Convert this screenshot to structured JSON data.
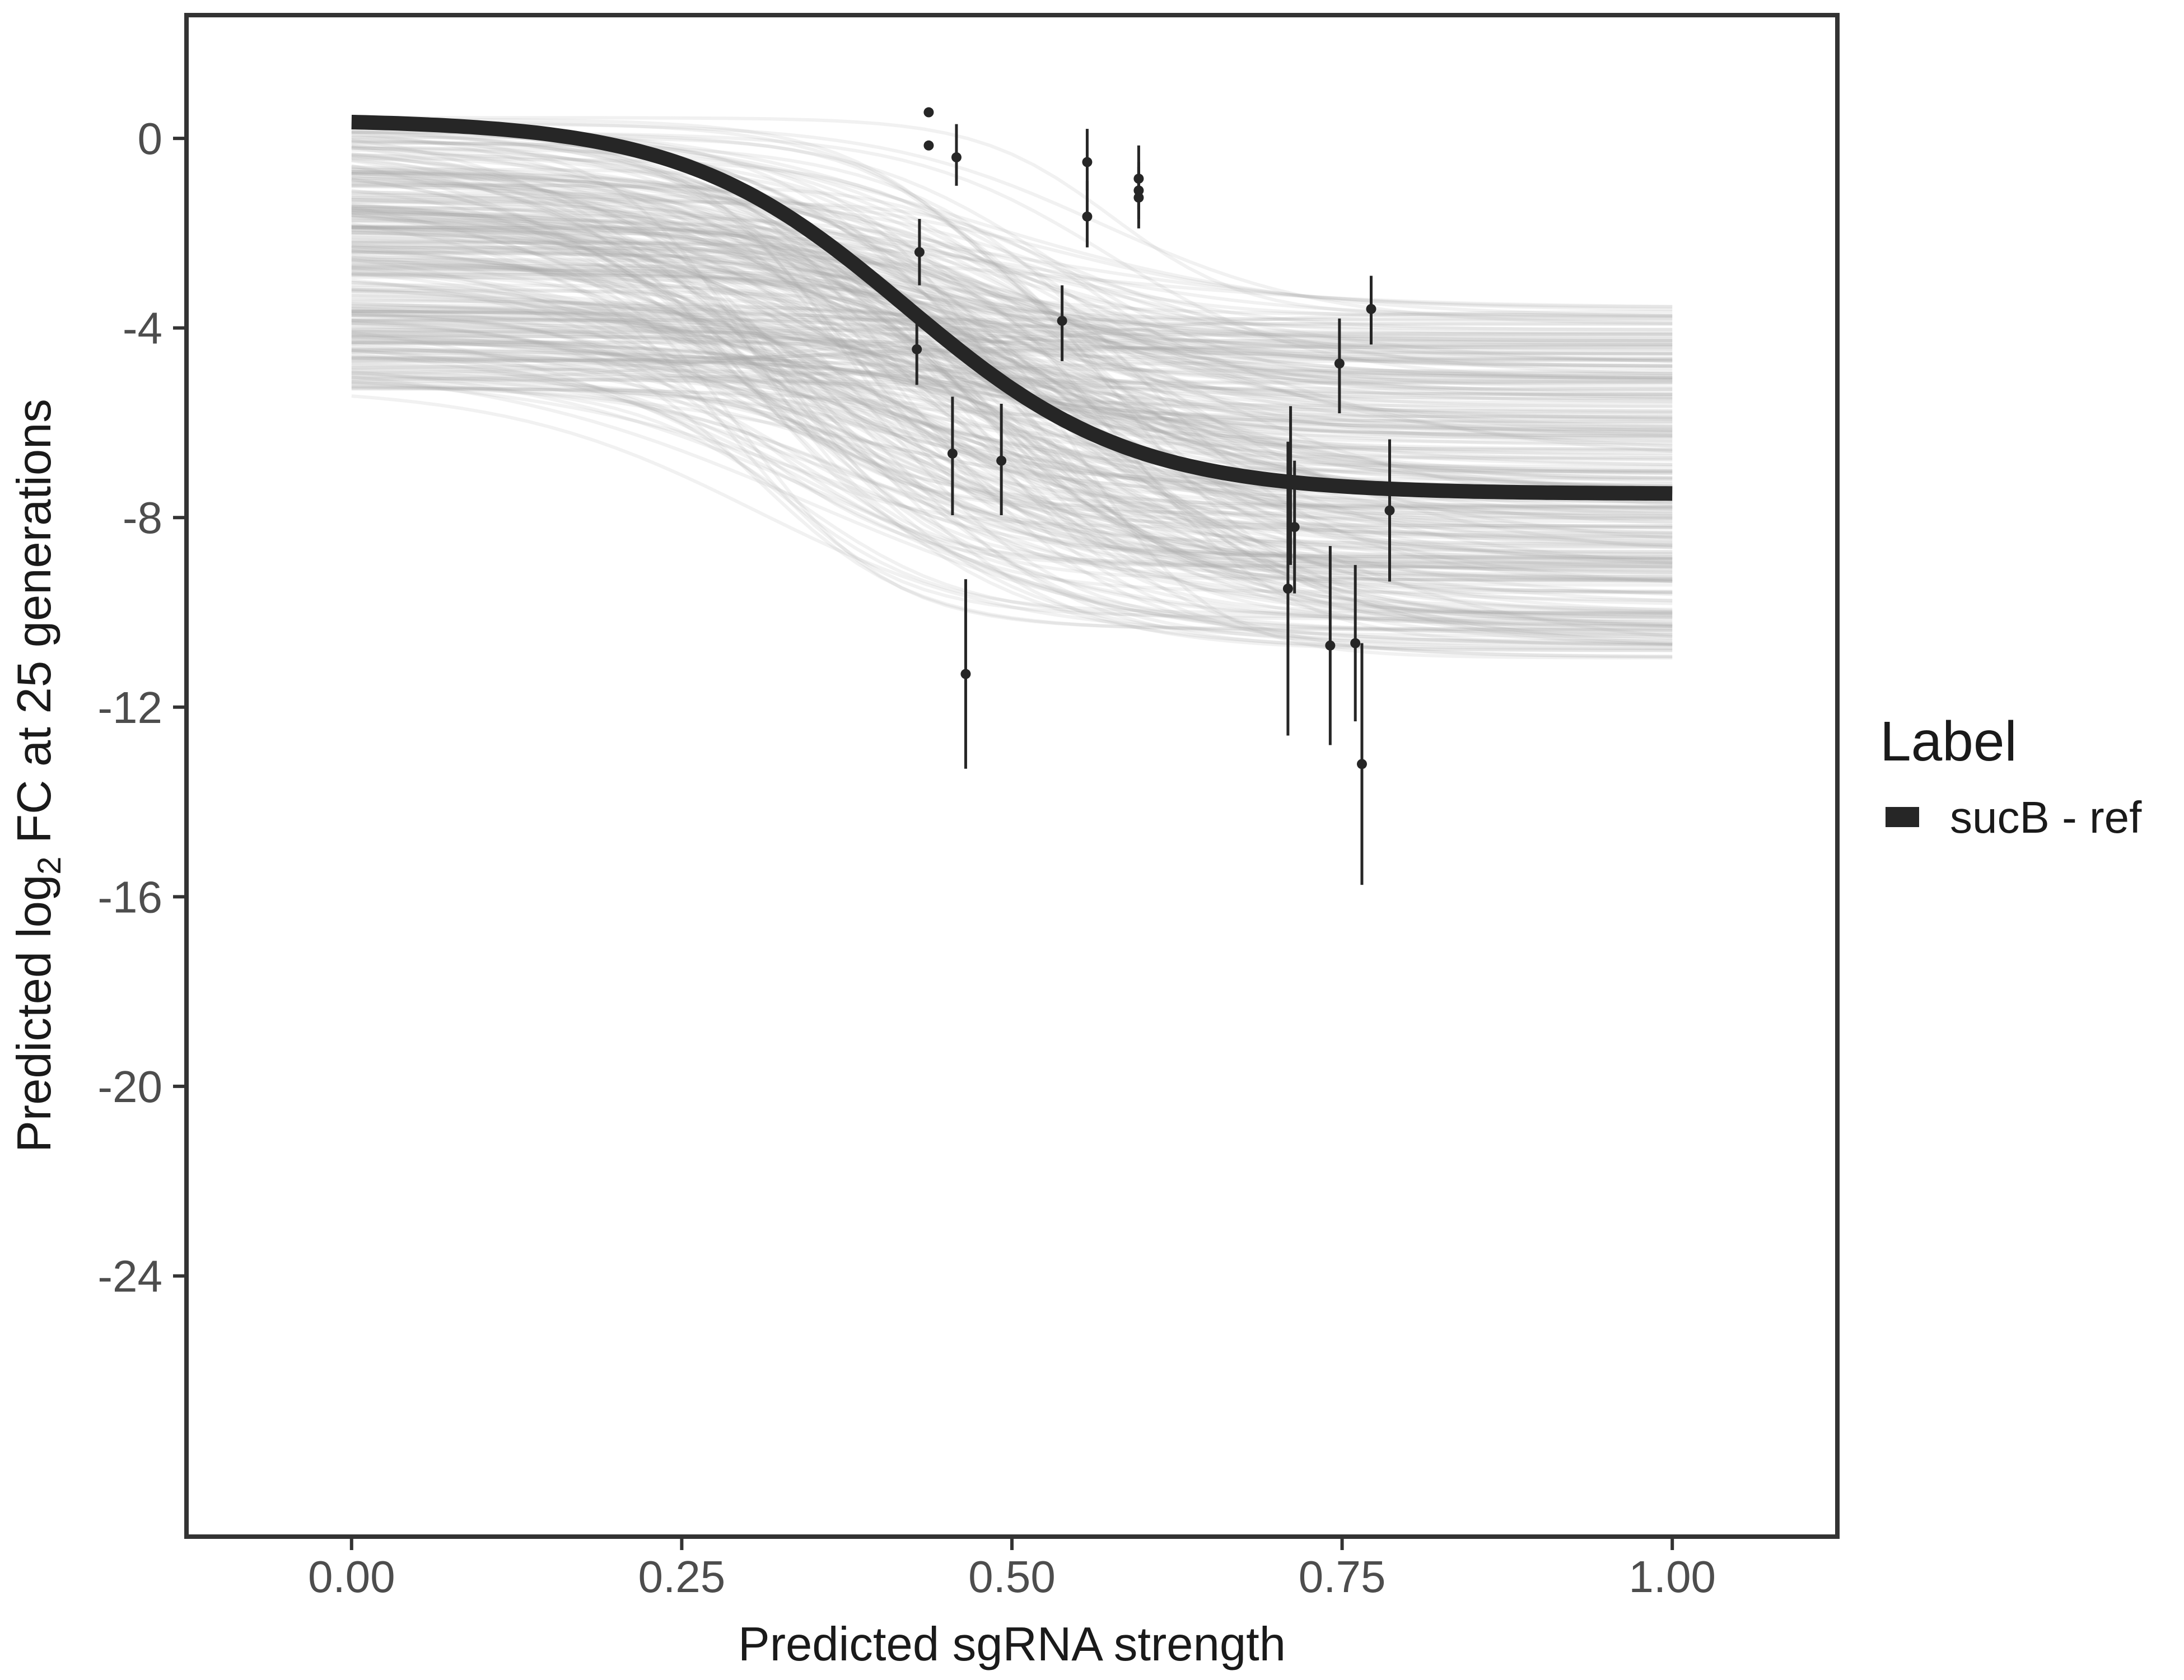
{
  "chart_data": {
    "type": "line",
    "title": "",
    "xlabel": "Predicted sgRNA strength",
    "ylabel": {
      "prefix": "Predicted  log",
      "subscript": "2",
      "suffix": " FC at 25 generations"
    },
    "xlim": [
      -0.125,
      1.125
    ],
    "ylim": [
      -29.5,
      2.6
    ],
    "x_ticks": [
      {
        "value": 0,
        "label": "0.00"
      },
      {
        "value": 0.25,
        "label": "0.25"
      },
      {
        "value": 0.5,
        "label": "0.50"
      },
      {
        "value": 0.75,
        "label": "0.75"
      },
      {
        "value": 1,
        "label": "1.00"
      }
    ],
    "y_ticks": [
      {
        "value": 0,
        "label": "0"
      },
      {
        "value": -4,
        "label": "-4"
      },
      {
        "value": -8,
        "label": "-8"
      },
      {
        "value": -12,
        "label": "-12"
      },
      {
        "value": -16,
        "label": "-16"
      },
      {
        "value": -20,
        "label": "-20"
      },
      {
        "value": -24,
        "label": "-24"
      }
    ],
    "grid": false,
    "legend": {
      "title": "Label",
      "position": "right",
      "entries": [
        {
          "name": "sucB - ref",
          "color": "#262626"
        }
      ]
    },
    "fit_line": {
      "name": "sucB - ref",
      "color": "#262626",
      "model": "logistic",
      "params": {
        "top": 0.4,
        "bottom": -7.5,
        "midpoint": 0.42,
        "scale": 0.085
      },
      "x_range": [
        0,
        1
      ]
    },
    "posterior_draws": {
      "color": "#aaaaaa",
      "count": 300,
      "top_range": [
        -5.3,
        0.5
      ],
      "bottom_range": [
        -11.0,
        -3.5
      ],
      "midpoint_range": [
        0.28,
        0.6
      ],
      "scale_range": [
        0.05,
        0.13
      ]
    },
    "points": [
      {
        "x": 0.437,
        "y": 0.55,
        "lo": 0.55,
        "hi": 0.55
      },
      {
        "x": 0.437,
        "y": -0.15,
        "lo": -0.15,
        "hi": -0.15
      },
      {
        "x": 0.458,
        "y": -0.4,
        "lo": -1.0,
        "hi": 0.3
      },
      {
        "x": 0.43,
        "y": -2.4,
        "lo": -3.1,
        "hi": -1.7
      },
      {
        "x": 0.428,
        "y": -4.45,
        "lo": -5.2,
        "hi": -3.75
      },
      {
        "x": 0.455,
        "y": -6.65,
        "lo": -7.95,
        "hi": -5.45
      },
      {
        "x": 0.465,
        "y": -11.3,
        "lo": -13.3,
        "hi": -9.3
      },
      {
        "x": 0.492,
        "y": -6.8,
        "lo": -7.95,
        "hi": -5.6
      },
      {
        "x": 0.538,
        "y": -3.85,
        "lo": -4.7,
        "hi": -3.1
      },
      {
        "x": 0.557,
        "y": -0.5,
        "lo": -1.1,
        "hi": 0.2
      },
      {
        "x": 0.557,
        "y": -1.65,
        "lo": -2.3,
        "hi": -0.9
      },
      {
        "x": 0.596,
        "y": -0.85,
        "lo": -1.5,
        "hi": -0.15
      },
      {
        "x": 0.596,
        "y": -1.1,
        "lo": -1.7,
        "hi": -0.5
      },
      {
        "x": 0.596,
        "y": -1.25,
        "lo": -1.9,
        "hi": -0.6
      },
      {
        "x": 0.709,
        "y": -9.5,
        "lo": -12.6,
        "hi": -6.4
      },
      {
        "x": 0.711,
        "y": -7.3,
        "lo": -9.0,
        "hi": -5.65
      },
      {
        "x": 0.714,
        "y": -8.2,
        "lo": -9.6,
        "hi": -6.8
      },
      {
        "x": 0.741,
        "y": -10.7,
        "lo": -12.8,
        "hi": -8.6
      },
      {
        "x": 0.748,
        "y": -4.75,
        "lo": -5.8,
        "hi": -3.8
      },
      {
        "x": 0.76,
        "y": -10.65,
        "lo": -12.3,
        "hi": -9.0
      },
      {
        "x": 0.765,
        "y": -13.2,
        "lo": -15.75,
        "hi": -10.65
      },
      {
        "x": 0.772,
        "y": -3.6,
        "lo": -4.35,
        "hi": -2.9
      },
      {
        "x": 0.786,
        "y": -7.85,
        "lo": -9.35,
        "hi": -6.35
      }
    ]
  }
}
